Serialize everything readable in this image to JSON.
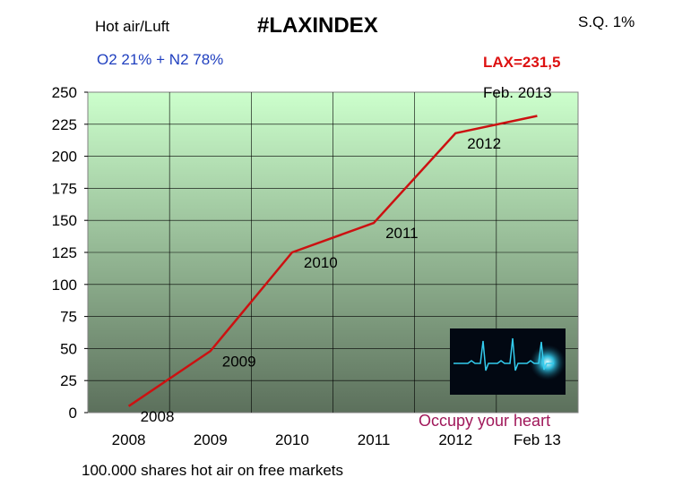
{
  "header": {
    "subtitle_left": "Hot air/Luft",
    "title": "#LAXINDEX",
    "top_right": "S.Q. 1%",
    "composition": "O2  21% + N2 78%",
    "lax_value": "LAX=231,5",
    "date": "Feb. 2013"
  },
  "footer": {
    "note": "100.000 shares hot air on free markets",
    "inset_caption": "Occupy your heart"
  },
  "colors": {
    "line": "#cc1111",
    "composition_text": "#1f3fbf",
    "lax_text": "#dd1111",
    "caption_text": "#a0185a",
    "plot_top": "#ccffcc",
    "plot_bottom": "#5c705c",
    "heartbeat": "#33ccee"
  },
  "inset_icon": "heartbeat-monitor-icon",
  "chart_data": {
    "type": "line",
    "categories": [
      "2008",
      "2009",
      "2010",
      "2011",
      "2012",
      "Feb 13"
    ],
    "values": [
      5,
      48,
      125,
      148,
      218,
      231.5
    ],
    "point_labels": [
      "2008",
      "2009",
      "2010",
      "2011",
      "2012",
      ""
    ],
    "ylim": [
      0,
      250
    ],
    "yticks": [
      0,
      25,
      50,
      75,
      100,
      125,
      150,
      175,
      200,
      225,
      250
    ],
    "grid": true
  }
}
